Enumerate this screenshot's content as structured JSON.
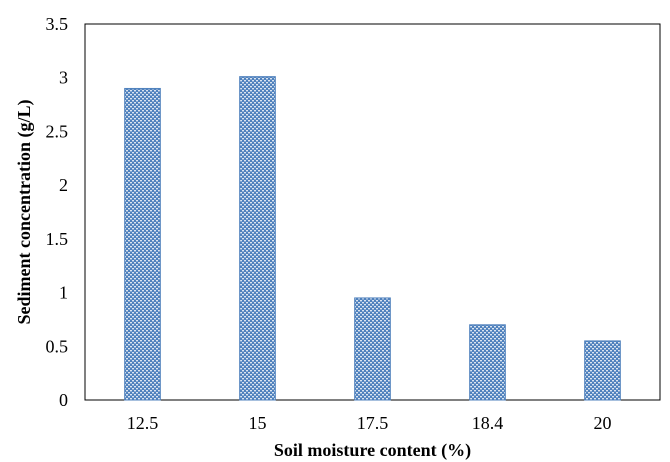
{
  "chart_data": {
    "type": "bar",
    "title": "",
    "xlabel": "Soil moisture content (%)",
    "ylabel": "Sediment concentration (g/L)",
    "categories": [
      "12.5",
      "15",
      "17.5",
      "18.4",
      "20"
    ],
    "values": [
      2.9,
      3.01,
      0.95,
      0.7,
      0.55
    ],
    "ylim": [
      0,
      3.5
    ],
    "yticks": [
      "0",
      "0.5",
      "1",
      "1.5",
      "2",
      "2.5",
      "3",
      "3.5"
    ],
    "grid": false,
    "legend": "none",
    "bar_color": "#4f81bd",
    "bar_pattern_color": "#dbe5f1",
    "frame_color": "#000000"
  }
}
